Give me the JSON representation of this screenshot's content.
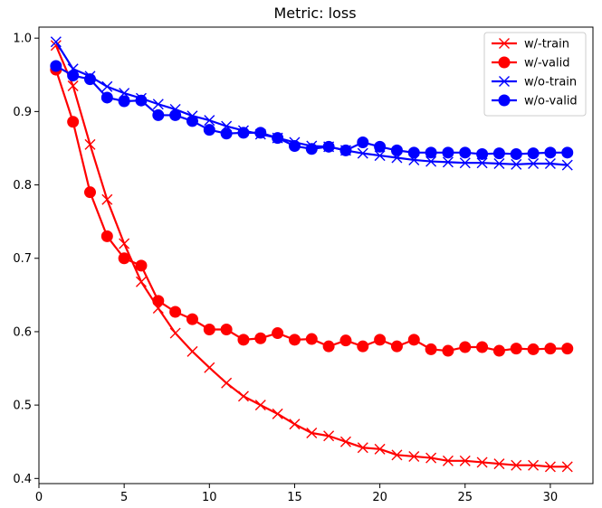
{
  "chart_data": {
    "type": "line",
    "title": "Metric: loss",
    "xlabel": "",
    "ylabel": "",
    "xlim": [
      0,
      32.5
    ],
    "ylim": [
      0.393,
      1.015
    ],
    "xticks": [
      0,
      5,
      10,
      15,
      20,
      25,
      30
    ],
    "yticks": [
      0.4,
      0.5,
      0.6,
      0.7,
      0.8,
      0.9,
      1.0
    ],
    "ytick_labels": [
      "0.4",
      "0.5",
      "0.6",
      "0.7",
      "0.8",
      "0.9",
      "1.0"
    ],
    "grid": false,
    "legend_position": "top-right",
    "x": [
      1,
      2,
      3,
      4,
      5,
      6,
      7,
      8,
      9,
      10,
      11,
      12,
      13,
      14,
      15,
      16,
      17,
      18,
      19,
      20,
      21,
      22,
      23,
      24,
      25,
      26,
      27,
      28,
      29,
      30,
      31
    ],
    "series": [
      {
        "name": "w/-train",
        "color": "#ff0000",
        "marker": "x",
        "values": [
          0.99,
          0.935,
          0.855,
          0.78,
          0.72,
          0.668,
          0.632,
          0.598,
          0.573,
          0.551,
          0.53,
          0.512,
          0.5,
          0.488,
          0.474,
          0.462,
          0.458,
          0.45,
          0.442,
          0.44,
          0.432,
          0.43,
          0.428,
          0.424,
          0.424,
          0.422,
          0.42,
          0.418,
          0.418,
          0.416,
          0.416
        ]
      },
      {
        "name": "w/-valid",
        "color": "#ff0000",
        "marker": "o",
        "values": [
          0.957,
          0.886,
          0.79,
          0.73,
          0.7,
          0.69,
          0.642,
          0.627,
          0.617,
          0.603,
          0.603,
          0.589,
          0.591,
          0.598,
          0.589,
          0.59,
          0.58,
          0.588,
          0.58,
          0.589,
          0.58,
          0.589,
          0.576,
          0.574,
          0.579,
          0.579,
          0.574,
          0.577,
          0.576,
          0.577,
          0.577
        ]
      },
      {
        "name": "w/o-train",
        "color": "#0000ff",
        "marker": "x",
        "values": [
          0.995,
          0.958,
          0.948,
          0.934,
          0.925,
          0.918,
          0.91,
          0.903,
          0.894,
          0.888,
          0.88,
          0.874,
          0.869,
          0.864,
          0.858,
          0.853,
          0.852,
          0.847,
          0.843,
          0.84,
          0.837,
          0.834,
          0.832,
          0.831,
          0.83,
          0.83,
          0.829,
          0.828,
          0.829,
          0.829,
          0.827
        ]
      },
      {
        "name": "w/o-valid",
        "color": "#0000ff",
        "marker": "o",
        "values": [
          0.962,
          0.949,
          0.944,
          0.919,
          0.914,
          0.915,
          0.895,
          0.895,
          0.887,
          0.875,
          0.87,
          0.871,
          0.871,
          0.864,
          0.853,
          0.849,
          0.852,
          0.847,
          0.858,
          0.852,
          0.847,
          0.844,
          0.844,
          0.844,
          0.844,
          0.842,
          0.843,
          0.842,
          0.843,
          0.844,
          0.844
        ]
      }
    ]
  }
}
